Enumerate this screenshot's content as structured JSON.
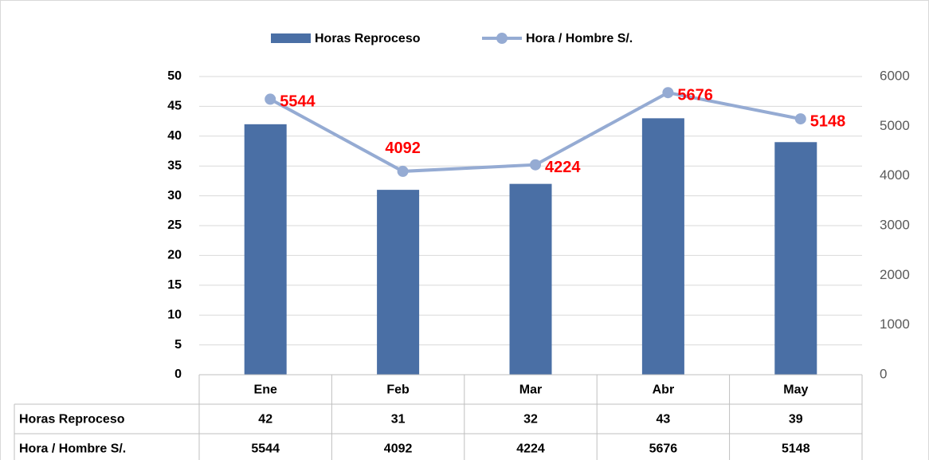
{
  "chart_data": {
    "type": "bar-line",
    "categories": [
      "Ene",
      "Feb",
      "Mar",
      "Abr",
      "May"
    ],
    "series": [
      {
        "name": "Horas Reproceso",
        "type": "bar",
        "color": "#4a6fa5",
        "values": [
          42,
          31,
          32,
          43,
          39
        ]
      },
      {
        "name": "Hora / Hombre S/.",
        "type": "line",
        "axis": "y2",
        "color": "#95abd3",
        "values": [
          5544,
          4092,
          4224,
          5676,
          5148
        ]
      }
    ],
    "ylim": [
      0,
      50
    ],
    "yticks": [
      0,
      5,
      10,
      15,
      20,
      25,
      30,
      35,
      40,
      45,
      50
    ],
    "y2lim": [
      0,
      6000
    ],
    "y2ticks": [
      0,
      1000,
      2000,
      3000,
      4000,
      5000,
      6000
    ],
    "grid": true,
    "legend": "top",
    "data_table": true,
    "value_label_color": "#ff0000"
  }
}
